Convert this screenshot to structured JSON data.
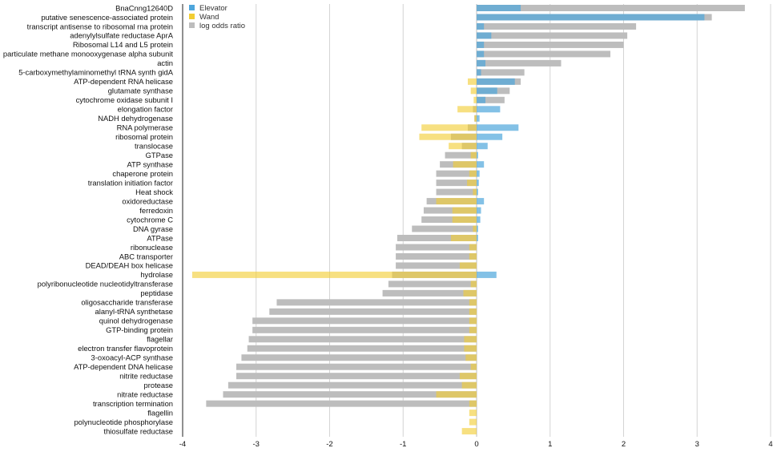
{
  "chart_data": {
    "type": "bar",
    "orientation": "horizontal",
    "title": "",
    "xlabel": "",
    "ylabel": "",
    "xlim": [
      -4,
      4
    ],
    "xticks": [
      -4,
      -3,
      -2,
      -1,
      0,
      1,
      2,
      3,
      4
    ],
    "grid": "vertical",
    "legend_position": "top-center",
    "legend": [
      "Elevator",
      "Wand",
      "log odds ratio"
    ],
    "colors": {
      "Elevator": "#4ea6dc",
      "Wand": "#f2cd33",
      "log odds ratio": "#bdbdbd"
    },
    "categories": [
      "BnaCnng12640D",
      "putative senescence-associated protein",
      "transcript antisense to ribosomal rna protein",
      "adenylylsulfate reductase AprA",
      "Ribosomal L14 and L5 protein",
      "particulate methane monooxygenase alpha subunit",
      "actin",
      "5-carboxymethylaminomethyl tRNA synth gidA",
      "ATP-dependent RNA helicase",
      "glutamate synthase",
      "cytochrome oxidase subunit I",
      "elongation factor",
      "NADH dehydrogenase",
      "RNA polymerase",
      "ribosomal protein",
      "translocase",
      "GTPase",
      "ATP synthase",
      "chaperone protein",
      "translation initiation factor",
      "Heat shock",
      "oxidoreductase",
      "ferredoxin",
      "cytochrome C",
      "DNA gyrase",
      "ATPase",
      "ribonuclease",
      "ABC transporter",
      "DEAD/DEAH box helicase",
      "hydrolase",
      "polyribonucleotide nucleotidyltransferase",
      "peptidase",
      "oligosaccharide transferase",
      "alanyl-tRNA synthetase",
      "quinol dehydrogenase",
      "GTP-binding protein",
      "flagellar",
      "electron transfer flavoprotein",
      "3-oxoacyl-ACP synthase",
      "ATP-dependent DNA helicase",
      "nitrite reductase",
      "protease",
      "nitrate reductase",
      "transcription termination",
      "flagellin",
      "polynucleotide phosphorylase",
      "thiosulfate reductase"
    ],
    "series": [
      {
        "name": "Elevator",
        "values": [
          0.6,
          3.1,
          0.1,
          0.2,
          0.1,
          0.1,
          0.12,
          0.06,
          0.52,
          0.28,
          0.12,
          0.32,
          0.04,
          0.57,
          0.35,
          0.15,
          0.02,
          0.1,
          0.04,
          0.03,
          0.02,
          0.1,
          0.06,
          0.05,
          0.02,
          0.02,
          0.0,
          0.0,
          0.0,
          0.27,
          0.0,
          0.0,
          0.0,
          0.0,
          0.0,
          0.0,
          0.0,
          0.0,
          0.0,
          0.0,
          0.0,
          0.0,
          0.0,
          0.0,
          0.0,
          0.0,
          0.0
        ]
      },
      {
        "name": "Wand",
        "values": [
          0.0,
          0.0,
          0.0,
          0.0,
          0.0,
          0.0,
          0.0,
          0.0,
          -0.12,
          -0.08,
          -0.04,
          -0.26,
          -0.03,
          -0.75,
          -0.78,
          -0.38,
          -0.08,
          -0.32,
          -0.1,
          -0.13,
          -0.05,
          -0.55,
          -0.33,
          -0.33,
          -0.05,
          -0.35,
          -0.1,
          -0.1,
          -0.23,
          -3.87,
          -0.08,
          -0.18,
          -0.1,
          -0.1,
          -0.1,
          -0.1,
          -0.17,
          -0.17,
          -0.15,
          -0.08,
          -0.23,
          -0.2,
          -0.55,
          -0.1,
          -0.1,
          -0.1,
          -0.2
        ]
      },
      {
        "name": "log odds ratio",
        "values": [
          3.65,
          3.2,
          2.17,
          2.05,
          2.0,
          1.82,
          1.15,
          0.65,
          0.6,
          0.45,
          0.38,
          -0.05,
          -0.03,
          -0.12,
          -0.35,
          -0.2,
          -0.43,
          -0.5,
          -0.55,
          -0.55,
          -0.55,
          -0.68,
          -0.72,
          -0.75,
          -0.88,
          -1.08,
          -1.1,
          -1.1,
          -1.1,
          -1.15,
          -1.2,
          -1.28,
          -2.72,
          -2.82,
          -3.05,
          -3.05,
          -3.1,
          -3.12,
          -3.2,
          -3.27,
          -3.27,
          -3.38,
          -3.45,
          -3.68,
          0.0,
          0.0,
          0.0
        ]
      }
    ]
  }
}
